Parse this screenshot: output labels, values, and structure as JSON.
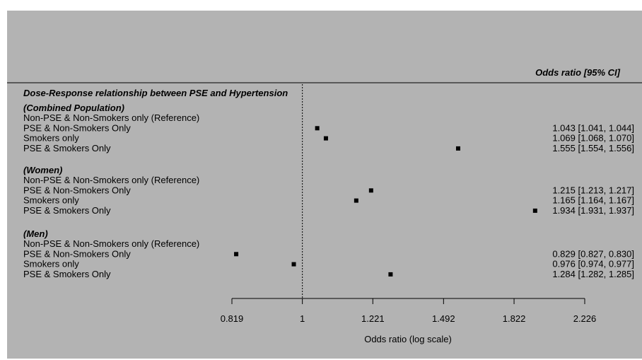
{
  "chart_data": {
    "type": "forest",
    "title": "Dose-Response relationship between PSE and Hypertension",
    "column_header": "Odds ratio [95% CI]",
    "xlabel": "Odds ratio (log scale)",
    "x_scale": "log",
    "xlim": [
      0.819,
      2.226
    ],
    "x_ticks": [
      0.819,
      1,
      1.221,
      1.492,
      1.822,
      2.226
    ],
    "x_tick_labels": [
      "0.819",
      "1",
      "1.221",
      "1.492",
      "1.822",
      "2.226"
    ],
    "reference_line": 1,
    "groups": [
      {
        "name": "(Combined Population)",
        "rows": [
          {
            "label": "Non-PSE & Non-Smokers only (Reference)",
            "or": null,
            "lo": null,
            "hi": null,
            "text": ""
          },
          {
            "label": "PSE & Non-Smokers Only",
            "or": 1.043,
            "lo": 1.041,
            "hi": 1.044,
            "text": "1.043 [1.041, 1.044]"
          },
          {
            "label": "Smokers only",
            "or": 1.069,
            "lo": 1.068,
            "hi": 1.07,
            "text": "1.069 [1.068, 1.070]"
          },
          {
            "label": "PSE & Smokers Only",
            "or": 1.555,
            "lo": 1.554,
            "hi": 1.556,
            "text": "1.555 [1.554, 1.556]"
          }
        ]
      },
      {
        "name": "(Women)",
        "rows": [
          {
            "label": "Non-PSE & Non-Smokers only (Reference)",
            "or": null,
            "lo": null,
            "hi": null,
            "text": ""
          },
          {
            "label": "PSE & Non-Smokers Only",
            "or": 1.215,
            "lo": 1.213,
            "hi": 1.217,
            "text": "1.215 [1.213, 1.217]"
          },
          {
            "label": "Smokers only",
            "or": 1.165,
            "lo": 1.164,
            "hi": 1.167,
            "text": "1.165 [1.164, 1.167]"
          },
          {
            "label": "PSE & Smokers Only",
            "or": 1.934,
            "lo": 1.931,
            "hi": 1.937,
            "text": "1.934 [1.931, 1.937]"
          }
        ]
      },
      {
        "name": "(Men)",
        "rows": [
          {
            "label": "Non-PSE & Non-Smokers only (Reference)",
            "or": null,
            "lo": null,
            "hi": null,
            "text": ""
          },
          {
            "label": "PSE & Non-Smokers Only",
            "or": 0.829,
            "lo": 0.827,
            "hi": 0.83,
            "text": "0.829 [0.827, 0.830]"
          },
          {
            "label": "Smokers only",
            "or": 0.976,
            "lo": 0.974,
            "hi": 0.977,
            "text": "0.976 [0.974, 0.977]"
          },
          {
            "label": "PSE & Smokers Only",
            "or": 1.284,
            "lo": 1.282,
            "hi": 1.285,
            "text": "1.284 [1.282, 1.285]"
          }
        ]
      }
    ],
    "colors": {
      "panel": "#b3b3b3",
      "ink": "#000000"
    }
  }
}
